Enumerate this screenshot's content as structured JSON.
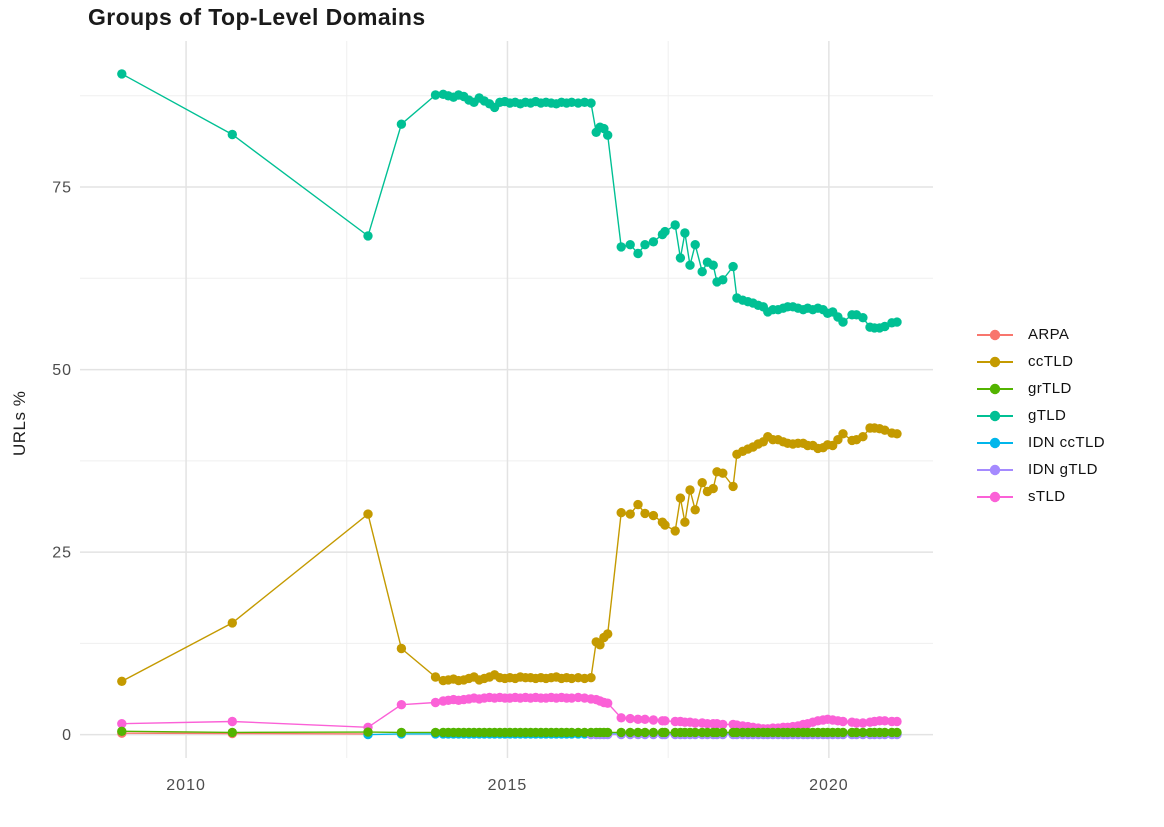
{
  "page": {
    "background": "#ffffff"
  },
  "chart_data": {
    "type": "line",
    "title": "Groups of Top-Level Domains",
    "xlabel": "",
    "ylabel": "URLs %",
    "xlim": [
      2008.35,
      2021.62
    ],
    "ylim": [
      -3.2,
      95
    ],
    "grid": "on",
    "legend_position": "right",
    "x_ticks": {
      "values": [
        2010,
        2015,
        2020
      ],
      "labels": [
        "2010",
        "2015",
        "2020"
      ]
    },
    "y_ticks": {
      "values": [
        0,
        25,
        50,
        75
      ],
      "labels": [
        "0",
        "25",
        "50",
        "75"
      ]
    },
    "x_minor": [
      2012.5,
      2017.5
    ],
    "y_minor": [
      12.5,
      37.5,
      62.5,
      87.5
    ],
    "x_common": [
      2009,
      2010.72,
      2012.83,
      2013.35,
      2013.88,
      2014,
      2014.08,
      2014.16,
      2014.24,
      2014.32,
      2014.4,
      2014.48,
      2014.56,
      2014.64,
      2014.72,
      2014.8,
      2014.88,
      2014.96,
      2015.04,
      2015.12,
      2015.2,
      2015.28,
      2015.36,
      2015.44,
      2015.52,
      2015.6,
      2015.68,
      2015.76,
      2015.84,
      2015.92,
      2016,
      2016.1,
      2016.2,
      2016.3,
      2016.38,
      2016.44,
      2016.5,
      2016.56,
      2016.77,
      2016.91,
      2017.03,
      2017.14,
      2017.27,
      2017.41,
      2017.45,
      2017.61,
      2017.69,
      2017.76,
      2017.84,
      2017.92,
      2018.03,
      2018.11,
      2018.2,
      2018.26,
      2018.35,
      2018.51,
      2018.57,
      2018.66,
      2018.74,
      2018.82,
      2018.9,
      2018.98,
      2019.05,
      2019.13,
      2019.21,
      2019.29,
      2019.36,
      2019.44,
      2019.52,
      2019.6,
      2019.67,
      2019.75,
      2019.83,
      2019.91,
      2019.98,
      2020.06,
      2020.14,
      2020.22,
      2020.36,
      2020.43,
      2020.53,
      2020.64,
      2020.71,
      2020.79,
      2020.87,
      2020.98,
      2021.06
    ],
    "draw_order": [
      "ARPA",
      "IDN ccTLD",
      "IDN gTLD",
      "ccTLD",
      "gTLD",
      "sTLD",
      "grTLD"
    ],
    "series": [
      {
        "name": "ARPA",
        "color": "#F8766D",
        "x": [
          2009,
          2010.72,
          2012.83
        ],
        "y": [
          0.2,
          0.15,
          0.1
        ]
      },
      {
        "name": "ccTLD",
        "color": "#C49A00",
        "x_start_index": 0,
        "y": [
          7.3,
          15.3,
          30.2,
          11.8,
          7.9,
          7.4,
          7.5,
          7.6,
          7.4,
          7.5,
          7.7,
          7.9,
          7.5,
          7.7,
          7.9,
          8.2,
          7.8,
          7.7,
          7.8,
          7.7,
          7.9,
          7.8,
          7.8,
          7.7,
          7.8,
          7.7,
          7.8,
          7.9,
          7.7,
          7.8,
          7.7,
          7.8,
          7.7,
          7.8,
          12.7,
          12.3,
          13.3,
          13.8,
          30.4,
          30.2,
          31.5,
          30.3,
          30,
          29.1,
          28.7,
          27.9,
          32.4,
          29.1,
          33.5,
          30.8,
          34.5,
          33.3,
          33.7,
          36,
          35.8,
          34,
          38.4,
          38.8,
          39.1,
          39.4,
          39.8,
          40.1,
          40.8,
          40.4,
          40.4,
          40.1,
          39.9,
          39.8,
          39.9,
          39.9,
          39.6,
          39.6,
          39.2,
          39.3,
          39.7,
          39.6,
          40.4,
          41.2,
          40.3,
          40.4,
          40.8,
          42,
          42,
          41.9,
          41.7,
          41.3,
          41.2
        ]
      },
      {
        "name": "grTLD",
        "color": "#53B400",
        "x_start_index": 0,
        "y_head": [
          0.45,
          0.3,
          0.35
        ],
        "y_fill": 0.3
      },
      {
        "name": "gTLD",
        "color": "#00C094",
        "x_start_index": 0,
        "y": [
          90.5,
          82.2,
          68.3,
          83.6,
          87.6,
          87.7,
          87.5,
          87.3,
          87.6,
          87.4,
          86.9,
          86.6,
          87.2,
          86.8,
          86.4,
          85.9,
          86.6,
          86.7,
          86.5,
          86.6,
          86.4,
          86.6,
          86.5,
          86.7,
          86.5,
          86.6,
          86.5,
          86.4,
          86.6,
          86.5,
          86.6,
          86.5,
          86.6,
          86.5,
          82.5,
          83.2,
          83,
          82.1,
          66.8,
          67.1,
          65.9,
          67.1,
          67.5,
          68.5,
          68.9,
          69.8,
          65.3,
          68.7,
          64.3,
          67.1,
          63.4,
          64.7,
          64.3,
          62,
          62.3,
          64.1,
          59.8,
          59.5,
          59.3,
          59.1,
          58.8,
          58.6,
          57.9,
          58.2,
          58.2,
          58.4,
          58.6,
          58.6,
          58.4,
          58.2,
          58.4,
          58.2,
          58.4,
          58.2,
          57.7,
          57.9,
          57.2,
          56.5,
          57.5,
          57.5,
          57.1,
          55.8,
          55.7,
          55.7,
          55.9,
          56.4,
          56.5
        ]
      },
      {
        "name": "IDN ccTLD",
        "color": "#00B6EB",
        "x_start_index": 2,
        "y_head": [
          0.0
        ],
        "y_fill": 0.1
      },
      {
        "name": "IDN gTLD",
        "color": "#A58AFF",
        "x_start_index": 33,
        "y_fill": 0.02
      },
      {
        "name": "sTLD",
        "color": "#FB61D7",
        "x_start_index": 0,
        "y": [
          1.5,
          1.8,
          1,
          4.1,
          4.4,
          4.6,
          4.7,
          4.8,
          4.7,
          4.8,
          4.9,
          5,
          4.9,
          5,
          5.1,
          5,
          5.1,
          5,
          5,
          5.1,
          5,
          5.1,
          5,
          5.1,
          5,
          5,
          5.1,
          5,
          5.1,
          5,
          5,
          5.1,
          5,
          4.9,
          4.8,
          4.6,
          4.4,
          4.3,
          2.3,
          2.2,
          2.1,
          2.1,
          2,
          1.9,
          1.9,
          1.8,
          1.8,
          1.7,
          1.7,
          1.6,
          1.6,
          1.5,
          1.5,
          1.5,
          1.4,
          1.4,
          1.3,
          1.2,
          1.1,
          1,
          0.9,
          0.8,
          0.8,
          0.9,
          0.9,
          1,
          1,
          1.1,
          1.2,
          1.4,
          1.5,
          1.7,
          1.9,
          2,
          2.1,
          2,
          1.9,
          1.8,
          1.7,
          1.6,
          1.6,
          1.7,
          1.8,
          1.9,
          1.9,
          1.8,
          1.8
        ]
      }
    ],
    "style": {
      "grid_major_color": "#e3e3e3",
      "grid_minor_color": "#efefef",
      "point_radius": 4.7,
      "line_width": 1.4
    }
  }
}
